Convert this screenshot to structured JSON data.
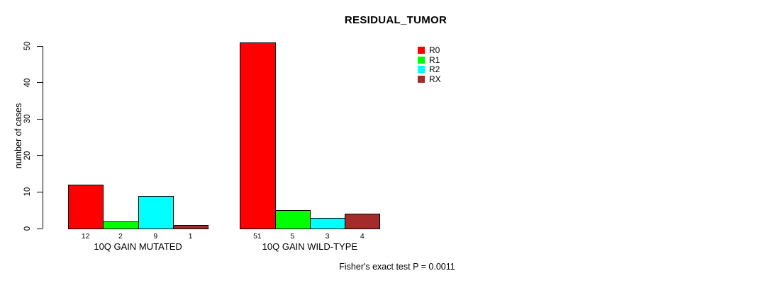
{
  "chart_data": {
    "type": "bar",
    "title": "RESIDUAL_TUMOR",
    "ylabel": "number of cases",
    "xlabel": "",
    "ylim": [
      0,
      50
    ],
    "yticks": [
      0,
      10,
      20,
      30,
      40,
      50
    ],
    "grid": false,
    "legend_position": "right-of-plot-top",
    "bar_value_labels": true,
    "categories": [
      "10Q GAIN MUTATED",
      "10Q GAIN WILD-TYPE"
    ],
    "series": [
      {
        "name": "R0",
        "color": "#ff0000",
        "values": [
          12,
          51
        ]
      },
      {
        "name": "R1",
        "color": "#00ff00",
        "values": [
          2,
          5
        ]
      },
      {
        "name": "R2",
        "color": "#00ffff",
        "values": [
          9,
          3
        ]
      },
      {
        "name": "RX",
        "color": "#a52a2a",
        "values": [
          1,
          4
        ]
      }
    ],
    "annotation": "Fisher's exact test P = 0.0011"
  }
}
